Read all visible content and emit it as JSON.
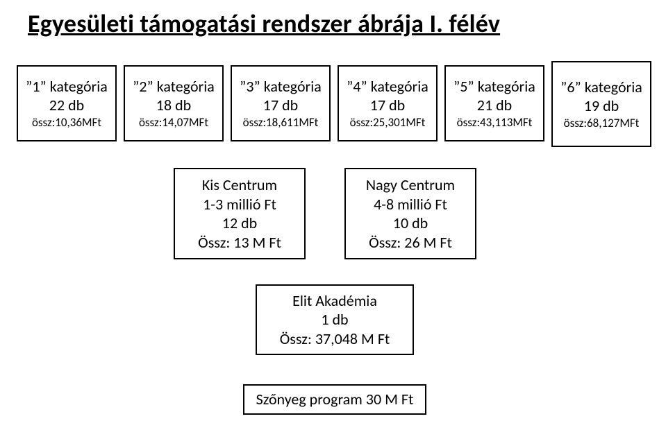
{
  "title": "Egyesületi támogatási rendszer ábrája I. félév",
  "colors": {
    "bg": "#ffffff",
    "border": "#000000",
    "text": "#000000"
  },
  "title_fontsize": 36,
  "box_fontsize": 22,
  "total_fontsize": 17,
  "categories": [
    {
      "label": "”1” kategória",
      "count": "22 db",
      "total": "össz:10,36MFt"
    },
    {
      "label": "”2” kategória",
      "count": "18 db",
      "total": "össz:14,07MFt"
    },
    {
      "label": "”3” kategória",
      "count": "17 db",
      "total": "össz:18,611MFt"
    },
    {
      "label": "”4” kategória",
      "count": "17 db",
      "total": "össz:25,301MFt"
    },
    {
      "label": "”5” kategória",
      "count": "21 db",
      "total": "össz:43,113MFt"
    },
    {
      "label": "”6” kategória",
      "count": "19 db",
      "total": "össz:68,127MFt"
    }
  ],
  "centrums": {
    "kis": {
      "l1": "Kis Centrum",
      "l2": "1-3 millió Ft",
      "l3": "12 db",
      "l4": "Össz: 13 M Ft"
    },
    "nagy": {
      "l1": "Nagy Centrum",
      "l2": "4-8 millió Ft",
      "l3": "10 db",
      "l4": "Össz: 26 M Ft"
    }
  },
  "elit": {
    "l1": "Elit Akadémia",
    "l2": "1 db",
    "l3": "Össz: 37,048 M Ft"
  },
  "szonyeg": {
    "l1": "Szőnyeg program 30 M Ft"
  }
}
